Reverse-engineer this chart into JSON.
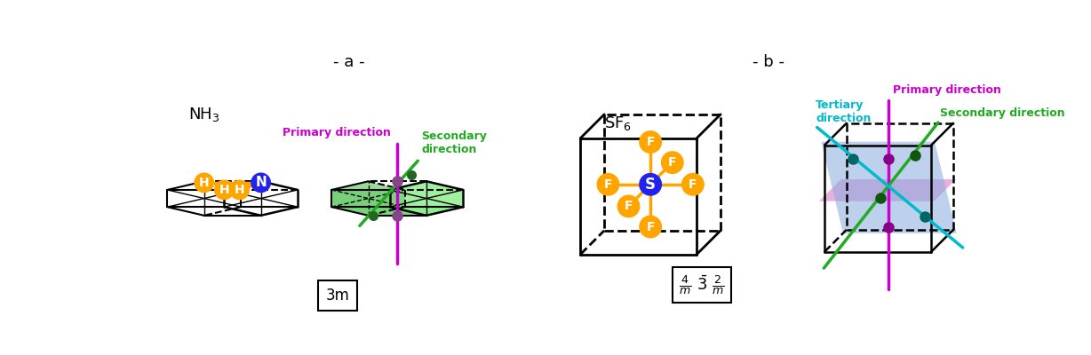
{
  "title_a": "- a -",
  "title_b": "- b -",
  "label_nh3": "NH$_3$",
  "label_sf6": "SF$_6$",
  "label_3m": "3m",
  "color_orange": "#FFA500",
  "color_blue": "#2222EE",
  "color_green": "#22AA22",
  "color_magenta": "#CC00CC",
  "color_cyan": "#00BBCC",
  "color_black": "#000000",
  "primary_dir_label_a": "Primary direction",
  "secondary_dir_label_a": "Secondary\ndirection",
  "secondary_dir_label_b": "Secondary direction",
  "tertiary_dir_label_b": "Tertiary\ndirection",
  "primary_dir_label_b": "Primary direction"
}
